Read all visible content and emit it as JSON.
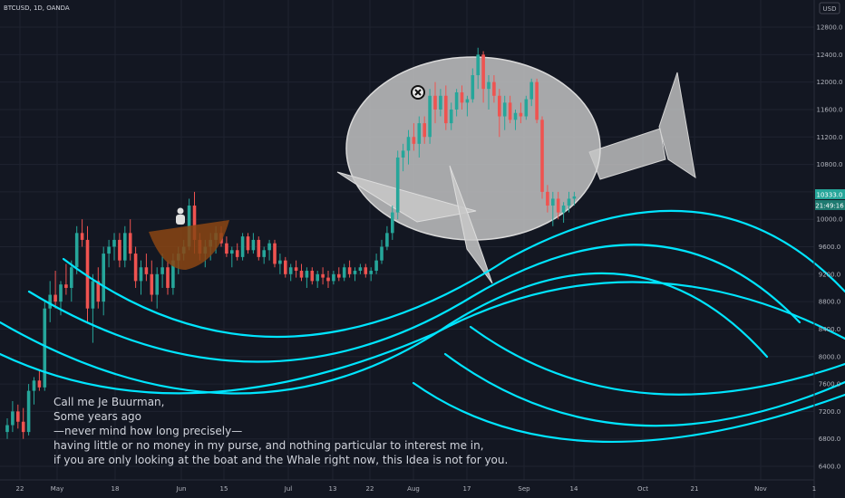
{
  "ticker": "BTCUSD, 1D, OANDA",
  "currency": "USD",
  "price_label": "10333.0",
  "countdown_label": "21:49:16",
  "story": [
    "Call me Je Buurman,",
    "Some years ago",
    "—never mind how long precisely—",
    "having little or no money in my purse, and nothing particular to interest me in,",
    "if you are only looking at the boat and the Whale right now, this Idea is not for you."
  ],
  "colors": {
    "background": "#131722",
    "grid": "#1f2330",
    "up": "#26a69a",
    "down": "#ef5350",
    "wave": "#00e5ff",
    "whale": "#c8c8c8",
    "boat": "#8b4513",
    "price_badge": "#26a69a",
    "countdown_badge": "#1e7a70"
  },
  "chart_data": {
    "type": "candlestick",
    "timeframe": "1D",
    "x_ticks": [
      "22",
      "May",
      "18",
      "Jun",
      "15",
      "Jul",
      "13",
      "22",
      "Aug",
      "17",
      "Sep",
      "14",
      "Oct",
      "21",
      "Nov",
      "1"
    ],
    "y_ticks": [
      6400,
      6800,
      7200,
      7600,
      8000,
      8400,
      8800,
      9200,
      9600,
      10000,
      10400,
      10800,
      11200,
      11600,
      12000,
      12400,
      12800
    ],
    "ylim": [
      6200,
      13000
    ],
    "last_price": 10333.0,
    "annotations": [
      "whale",
      "boat with fisherman",
      "waves"
    ],
    "candles": [
      [
        6900,
        7100,
        6800,
        7000
      ],
      [
        7000,
        7350,
        6900,
        7200
      ],
      [
        7200,
        7300,
        6950,
        7050
      ],
      [
        7050,
        7250,
        6800,
        6900
      ],
      [
        6900,
        7600,
        6850,
        7500
      ],
      [
        7500,
        7700,
        7300,
        7650
      ],
      [
        7650,
        7800,
        7500,
        7550
      ],
      [
        7550,
        8800,
        7500,
        8700
      ],
      [
        8700,
        9100,
        8500,
        8900
      ],
      [
        8900,
        9250,
        8700,
        8800
      ],
      [
        8800,
        9100,
        8600,
        9050
      ],
      [
        9050,
        9350,
        8900,
        9000
      ],
      [
        9000,
        9400,
        8800,
        9300
      ],
      [
        9300,
        9900,
        9200,
        9800
      ],
      [
        9800,
        10000,
        9600,
        9700
      ],
      [
        9700,
        9900,
        8500,
        8700
      ],
      [
        8700,
        9200,
        8200,
        9100
      ],
      [
        9100,
        9300,
        8700,
        8800
      ],
      [
        8800,
        9600,
        8600,
        9500
      ],
      [
        9500,
        9700,
        9300,
        9600
      ],
      [
        9600,
        9800,
        9400,
        9700
      ],
      [
        9700,
        9800,
        9300,
        9400
      ],
      [
        9400,
        9900,
        9300,
        9800
      ],
      [
        9800,
        10000,
        9400,
        9500
      ],
      [
        9500,
        9600,
        9000,
        9100
      ],
      [
        9100,
        9400,
        8900,
        9300
      ],
      [
        9300,
        9500,
        9100,
        9200
      ],
      [
        9200,
        9400,
        8800,
        8900
      ],
      [
        8900,
        9300,
        8700,
        9200
      ],
      [
        9200,
        9500,
        9000,
        9300
      ],
      [
        9300,
        9400,
        8900,
        9000
      ],
      [
        9000,
        9500,
        8900,
        9400
      ],
      [
        9400,
        9600,
        9200,
        9500
      ],
      [
        9500,
        9700,
        9400,
        9600
      ],
      [
        9600,
        10300,
        9550,
        10200
      ],
      [
        10200,
        10400,
        9500,
        9700
      ],
      [
        9700,
        9800,
        9400,
        9500
      ],
      [
        9500,
        9700,
        9300,
        9600
      ],
      [
        9600,
        9800,
        9400,
        9700
      ],
      [
        9700,
        9900,
        9500,
        9800
      ],
      [
        9800,
        9900,
        9600,
        9650
      ],
      [
        9650,
        9750,
        9450,
        9500
      ],
      [
        9500,
        9600,
        9300,
        9550
      ],
      [
        9550,
        9650,
        9400,
        9450
      ],
      [
        9450,
        9800,
        9400,
        9750
      ],
      [
        9750,
        9800,
        9500,
        9550
      ],
      [
        9550,
        9800,
        9500,
        9700
      ],
      [
        9700,
        9750,
        9400,
        9450
      ],
      [
        9450,
        9600,
        9350,
        9550
      ],
      [
        9550,
        9700,
        9400,
        9650
      ],
      [
        9650,
        9700,
        9300,
        9350
      ],
      [
        9350,
        9500,
        9200,
        9400
      ],
      [
        9400,
        9450,
        9150,
        9200
      ],
      [
        9200,
        9350,
        9100,
        9300
      ],
      [
        9300,
        9400,
        9150,
        9250
      ],
      [
        9250,
        9350,
        9100,
        9150
      ],
      [
        9150,
        9300,
        9000,
        9250
      ],
      [
        9250,
        9300,
        9050,
        9100
      ],
      [
        9100,
        9250,
        9000,
        9200
      ],
      [
        9200,
        9300,
        9050,
        9150
      ],
      [
        9150,
        9250,
        9000,
        9100
      ],
      [
        9100,
        9250,
        9050,
        9200
      ],
      [
        9200,
        9300,
        9100,
        9150
      ],
      [
        9150,
        9350,
        9100,
        9300
      ],
      [
        9300,
        9400,
        9150,
        9200
      ],
      [
        9200,
        9300,
        9100,
        9250
      ],
      [
        9250,
        9350,
        9200,
        9300
      ],
      [
        9300,
        9350,
        9150,
        9200
      ],
      [
        9200,
        9300,
        9100,
        9250
      ],
      [
        9250,
        9500,
        9200,
        9400
      ],
      [
        9400,
        9700,
        9350,
        9600
      ],
      [
        9600,
        9900,
        9550,
        9800
      ],
      [
        9800,
        10200,
        9700,
        10100
      ],
      [
        10100,
        11000,
        10000,
        10900
      ],
      [
        10900,
        11100,
        10700,
        11000
      ],
      [
        11000,
        11300,
        10800,
        11200
      ],
      [
        11200,
        11400,
        11000,
        11100
      ],
      [
        11100,
        11500,
        10900,
        11400
      ],
      [
        11400,
        11500,
        11100,
        11200
      ],
      [
        11200,
        11900,
        11100,
        11800
      ],
      [
        11800,
        12000,
        11400,
        11600
      ],
      [
        11600,
        11900,
        11500,
        11800
      ],
      [
        11800,
        11950,
        11300,
        11400
      ],
      [
        11400,
        11700,
        11300,
        11600
      ],
      [
        11600,
        11900,
        11500,
        11850
      ],
      [
        11850,
        11950,
        11600,
        11700
      ],
      [
        11700,
        11800,
        11500,
        11750
      ],
      [
        11750,
        12200,
        11700,
        12100
      ],
      [
        12100,
        12500,
        11900,
        12400
      ],
      [
        12400,
        12450,
        11700,
        11900
      ],
      [
        11900,
        12100,
        11600,
        12000
      ],
      [
        12000,
        12100,
        11700,
        11800
      ],
      [
        11800,
        11900,
        11200,
        11500
      ],
      [
        11500,
        11800,
        11300,
        11700
      ],
      [
        11700,
        11800,
        11400,
        11450
      ],
      [
        11450,
        11600,
        11300,
        11550
      ],
      [
        11550,
        11700,
        11400,
        11500
      ],
      [
        11500,
        11800,
        11450,
        11750
      ],
      [
        11750,
        12050,
        11650,
        12000
      ],
      [
        12000,
        12050,
        11400,
        11450
      ],
      [
        11450,
        11500,
        10300,
        10400
      ],
      [
        10400,
        10500,
        10100,
        10200
      ],
      [
        10200,
        10400,
        9900,
        10300
      ],
      [
        10300,
        10400,
        10000,
        10100
      ],
      [
        10100,
        10250,
        9950,
        10200
      ],
      [
        10200,
        10400,
        10100,
        10300
      ],
      [
        10300,
        10400,
        10200,
        10333
      ]
    ]
  }
}
